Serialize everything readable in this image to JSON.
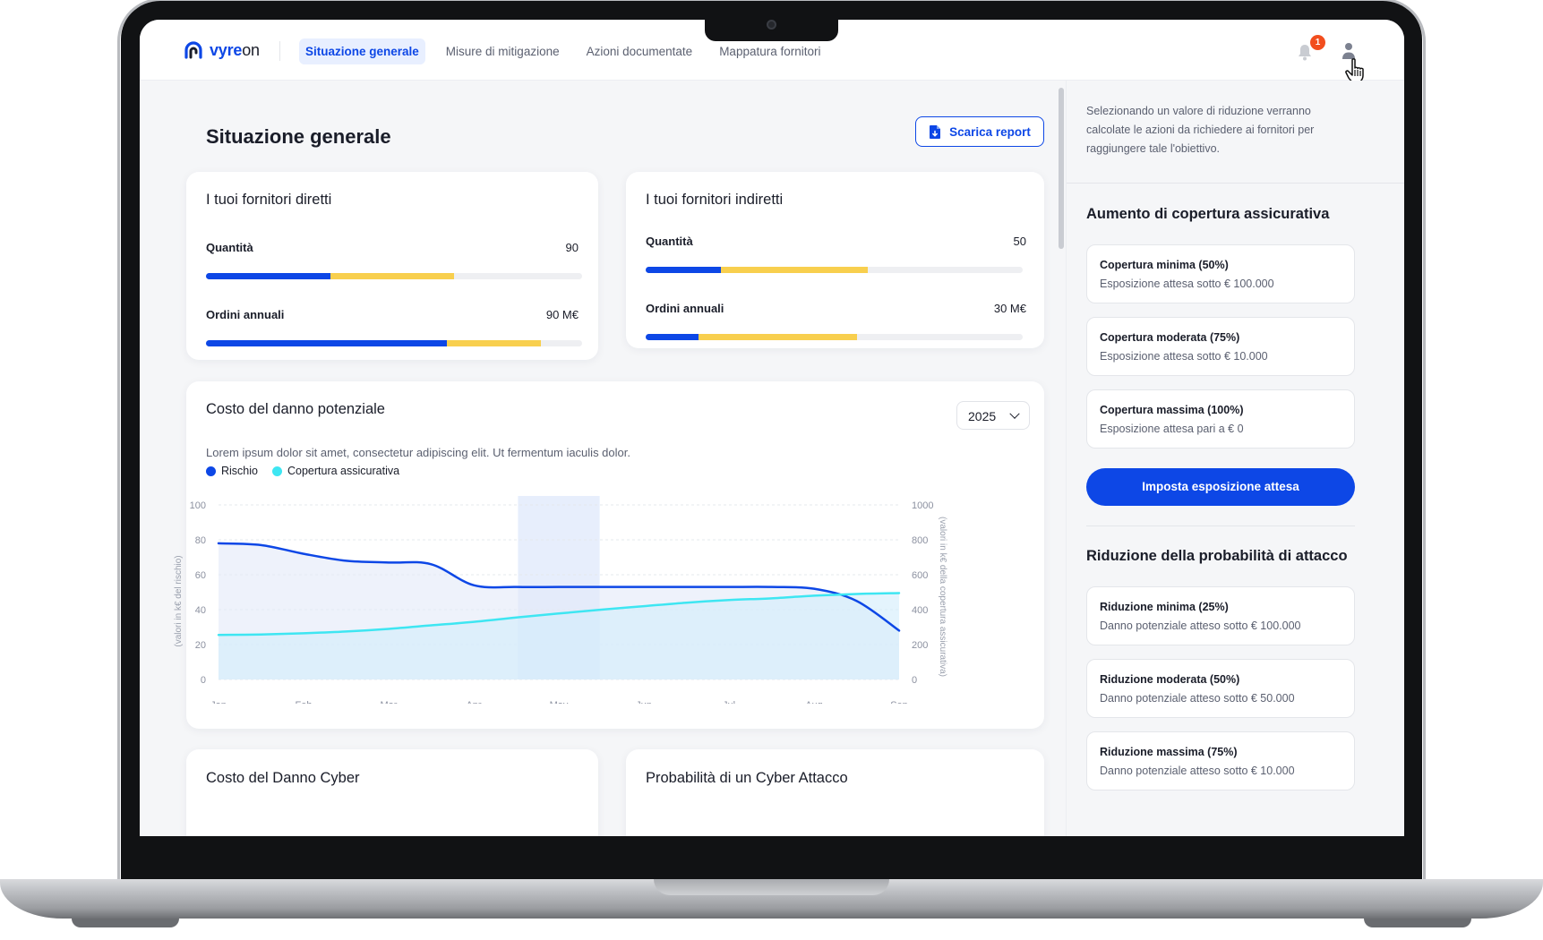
{
  "app": {
    "logo_text_prefix": "vyre",
    "logo_text_suffix": "on"
  },
  "nav": {
    "tabs": [
      {
        "label": "Situazione generale",
        "active": true
      },
      {
        "label": "Misure di mitigazione",
        "active": false
      },
      {
        "label": "Azioni documentate",
        "active": false
      },
      {
        "label": "Mappatura fornitori",
        "active": false
      }
    ],
    "notifications_count": "1"
  },
  "page": {
    "title": "Situazione generale",
    "report_button": "Scarica report"
  },
  "colors": {
    "blue": "#0d47e6",
    "yellow": "#f8cf4e",
    "cyan": "#3ee6f2",
    "track": "#eeeff2"
  },
  "direct_suppliers": {
    "title": "I tuoi fornitori diretti",
    "metrics": [
      {
        "label": "Quantità",
        "value": "90",
        "blue_fraction": 0.33,
        "yellow_fraction": 0.33
      },
      {
        "label": "Ordini annuali",
        "value": "90 M€",
        "blue_fraction": 0.64,
        "yellow_fraction": 0.25
      }
    ]
  },
  "indirect_suppliers": {
    "title": "I tuoi fornitori indiretti",
    "metrics": [
      {
        "label": "Quantità",
        "value": "50",
        "blue_fraction": 0.2,
        "yellow_fraction": 0.39
      },
      {
        "label": "Ordini annuali",
        "value": "30 M€",
        "blue_fraction": 0.14,
        "yellow_fraction": 0.42
      }
    ]
  },
  "damage_chart": {
    "title": "Costo del danno potenziale",
    "subtitle": "Lorem ipsum dolor sit amet, consectetur adipiscing elit. Ut fermentum iaculis dolor.",
    "year": "2025",
    "legend": [
      {
        "name": "Rischio",
        "color": "#0d47e6"
      },
      {
        "name": "Copertura assicurativa",
        "color": "#3ee6f2"
      }
    ]
  },
  "chart_data": {
    "type": "line",
    "categories": [
      "Jan",
      "Feb",
      "Mar",
      "Apr",
      "May",
      "Jun",
      "Jul",
      "Aug",
      "Sep"
    ],
    "x": [
      0,
      0.5,
      1,
      1.5,
      2,
      2.5,
      3,
      3.5,
      4,
      4.5,
      5,
      5.5,
      6,
      6.5,
      7,
      7.5,
      8
    ],
    "series": [
      {
        "name": "Rischio",
        "axis": "left",
        "color": "#0d47e6",
        "values": [
          78,
          77,
          72,
          68,
          67,
          66,
          54,
          53,
          53,
          53,
          53,
          53,
          53,
          53,
          52,
          45,
          28
        ]
      },
      {
        "name": "Copertura assicurativa",
        "axis": "right",
        "color": "#3ee6f2",
        "values": [
          255,
          258,
          265,
          275,
          290,
          310,
          330,
          355,
          378,
          400,
          420,
          440,
          455,
          465,
          480,
          490,
          495
        ]
      }
    ],
    "ylabel": "(valori in k€ del rischio)",
    "y2label": "(valori in k€ della copertura assicurativa)",
    "ylim": [
      0,
      100
    ],
    "y2lim": [
      0,
      1000
    ],
    "yticks": [
      "0",
      "20",
      "40",
      "60",
      "80",
      "100"
    ],
    "y2ticks": [
      "0",
      "200",
      "400",
      "600",
      "800",
      "1000"
    ],
    "highlight_category": "May",
    "grid": true
  },
  "bottom_cards": {
    "left_title": "Costo del Danno Cyber",
    "right_title": "Probabilità di un Cyber Attacco"
  },
  "side": {
    "intro": "Selezionando un valore di riduzione verranno calcolate le azioni da richiedere ai fornitori per raggiungere tale l'obiettivo.",
    "coverage_title": "Aumento di copertura assicurativa",
    "coverage_options": [
      {
        "title": "Copertura minima (50%)",
        "sub": "Esposizione attesa sotto € 100.000"
      },
      {
        "title": "Copertura moderata (75%)",
        "sub": "Esposizione attesa sotto € 10.000"
      },
      {
        "title": "Copertura massima (100%)",
        "sub": "Esposizione attesa pari a € 0"
      }
    ],
    "primary_button": "Imposta esposizione attesa",
    "reduction_title": "Riduzione della probabilità di attacco",
    "reduction_options": [
      {
        "title": "Riduzione minima (25%)",
        "sub": "Danno potenziale atteso sotto € 100.000"
      },
      {
        "title": "Riduzione moderata (50%)",
        "sub": "Danno potenziale atteso sotto € 50.000"
      },
      {
        "title": "Riduzione massima (75%)",
        "sub": "Danno potenziale atteso sotto € 10.000"
      }
    ]
  }
}
